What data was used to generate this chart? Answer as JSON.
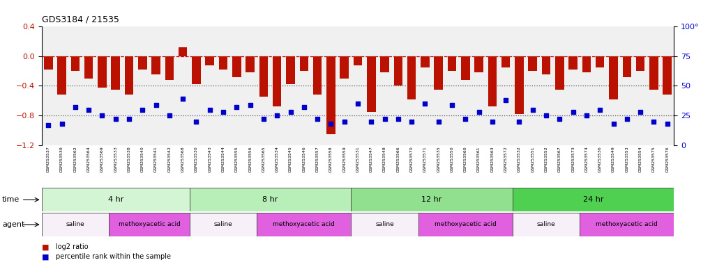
{
  "title": "GDS3184 / 21535",
  "samples": [
    "GSM253537",
    "GSM253539",
    "GSM253562",
    "GSM253564",
    "GSM253569",
    "GSM253533",
    "GSM253538",
    "GSM253540",
    "GSM253541",
    "GSM253542",
    "GSM253568",
    "GSM253530",
    "GSM253543",
    "GSM253544",
    "GSM253555",
    "GSM253556",
    "GSM253565",
    "GSM253534",
    "GSM253545",
    "GSM253546",
    "GSM253557",
    "GSM253558",
    "GSM253559",
    "GSM253531",
    "GSM253547",
    "GSM253548",
    "GSM253566",
    "GSM253570",
    "GSM253571",
    "GSM253535",
    "GSM253550",
    "GSM253560",
    "GSM253561",
    "GSM253563",
    "GSM253572",
    "GSM253532",
    "GSM253551",
    "GSM253552",
    "GSM253567",
    "GSM253573",
    "GSM253574",
    "GSM253536",
    "GSM253549",
    "GSM253553",
    "GSM253554",
    "GSM253575",
    "GSM253576"
  ],
  "log2_ratio": [
    -0.18,
    -0.52,
    -0.2,
    -0.3,
    -0.42,
    -0.45,
    -0.52,
    -0.18,
    -0.25,
    -0.32,
    0.12,
    -0.38,
    -0.12,
    -0.18,
    -0.28,
    -0.22,
    -0.55,
    -0.68,
    -0.38,
    -0.2,
    -0.52,
    -1.05,
    -0.3,
    -0.12,
    -0.75,
    -0.22,
    -0.4,
    -0.58,
    -0.15,
    -0.45,
    -0.2,
    -0.32,
    -0.22,
    -0.68,
    -0.15,
    -0.78,
    -0.2,
    -0.25,
    -0.45,
    -0.18,
    -0.22,
    -0.15,
    -0.58,
    -0.28,
    -0.2,
    -0.45,
    -0.52
  ],
  "percentile_rank": [
    17,
    18,
    32,
    30,
    25,
    22,
    22,
    30,
    34,
    25,
    39,
    20,
    30,
    28,
    32,
    34,
    22,
    25,
    28,
    32,
    22,
    18,
    20,
    35,
    20,
    22,
    22,
    20,
    35,
    20,
    34,
    22,
    28,
    20,
    38,
    20,
    30,
    25,
    22,
    28,
    25,
    30,
    18,
    22,
    28,
    20,
    18
  ],
  "time_groups": [
    {
      "label": "4 hr",
      "start": 0,
      "end": 11,
      "color": "#d4f5d4"
    },
    {
      "label": "8 hr",
      "start": 11,
      "end": 23,
      "color": "#b8eeb8"
    },
    {
      "label": "12 hr",
      "start": 23,
      "end": 35,
      "color": "#90e090"
    },
    {
      "label": "24 hr",
      "start": 35,
      "end": 47,
      "color": "#50d050"
    }
  ],
  "agent_groups": [
    {
      "label": "saline",
      "start": 0,
      "end": 5,
      "color": "#f8f0f8"
    },
    {
      "label": "methoxyacetic acid",
      "start": 5,
      "end": 11,
      "color": "#e060e0"
    },
    {
      "label": "saline",
      "start": 11,
      "end": 16,
      "color": "#f8f0f8"
    },
    {
      "label": "methoxyacetic acid",
      "start": 16,
      "end": 23,
      "color": "#e060e0"
    },
    {
      "label": "saline",
      "start": 23,
      "end": 28,
      "color": "#f8f0f8"
    },
    {
      "label": "methoxyacetic acid",
      "start": 28,
      "end": 35,
      "color": "#e060e0"
    },
    {
      "label": "saline",
      "start": 35,
      "end": 40,
      "color": "#f8f0f8"
    },
    {
      "label": "methoxyacetic acid",
      "start": 40,
      "end": 47,
      "color": "#e060e0"
    }
  ],
  "bar_color": "#bb1100",
  "dot_color": "#0000cc",
  "left_ylim": [
    -1.2,
    0.4
  ],
  "right_ylim": [
    0,
    100
  ],
  "left_yticks": [
    -1.2,
    -0.8,
    -0.4,
    0.0,
    0.4
  ],
  "right_yticks": [
    0,
    25,
    50,
    75,
    100
  ],
  "right_yticklabels": [
    "0",
    "25",
    "50",
    "75",
    "100°"
  ],
  "hlines": [
    0.0,
    -0.4,
    -0.8
  ],
  "hline_styles": [
    "--",
    ":",
    ":"
  ],
  "hline_colors": [
    "#cc0000",
    "#555555",
    "#555555"
  ]
}
